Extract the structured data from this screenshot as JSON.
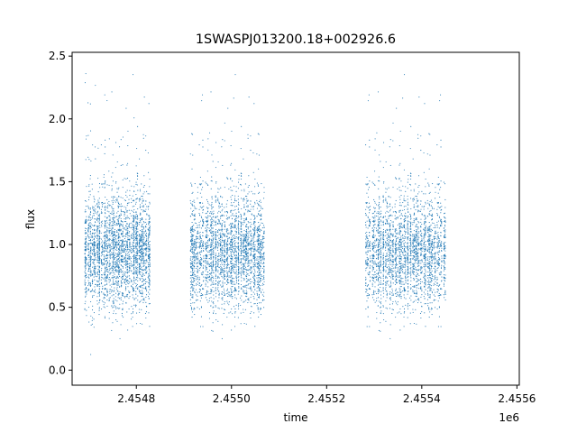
{
  "chart_data": {
    "type": "scatter",
    "title": "1SWASPJ013200.18+002926.6",
    "xlabel": "time",
    "ylabel": "flux",
    "x_offset_label": "1e6",
    "xlim": [
      2454665,
      2455605
    ],
    "ylim": [
      -0.12,
      2.53
    ],
    "x_ticks": [
      {
        "value": 2454800,
        "label": "2.4548"
      },
      {
        "value": 2455000,
        "label": "2.4550"
      },
      {
        "value": 2455200,
        "label": "2.4552"
      },
      {
        "value": 2455400,
        "label": "2.4554"
      },
      {
        "value": 2455600,
        "label": "2.4556"
      }
    ],
    "y_ticks": [
      {
        "value": 0.0,
        "label": "0.0"
      },
      {
        "value": 0.5,
        "label": "0.5"
      },
      {
        "value": 1.0,
        "label": "1.0"
      },
      {
        "value": 1.5,
        "label": "1.5"
      },
      {
        "value": 2.0,
        "label": "2.0"
      },
      {
        "value": 2.5,
        "label": "2.5"
      }
    ],
    "grid": false,
    "legend": "none",
    "marker_color": "#1f77b4",
    "series": [
      {
        "observing_seasons": [
          {
            "time_range": [
              2454690,
              2454830
            ],
            "flux_center": 0.93,
            "flux_spread": 0.22,
            "flux_range": [
              0.0,
              2.4
            ]
          },
          {
            "time_range": [
              2454912,
              2455070
            ],
            "flux_center": 0.93,
            "flux_spread": 0.22,
            "flux_range": [
              0.0,
              2.4
            ]
          },
          {
            "time_range": [
              2455280,
              2455450
            ],
            "flux_center": 0.93,
            "flux_spread": 0.22,
            "flux_range": [
              0.02,
              2.4
            ]
          }
        ]
      }
    ]
  }
}
